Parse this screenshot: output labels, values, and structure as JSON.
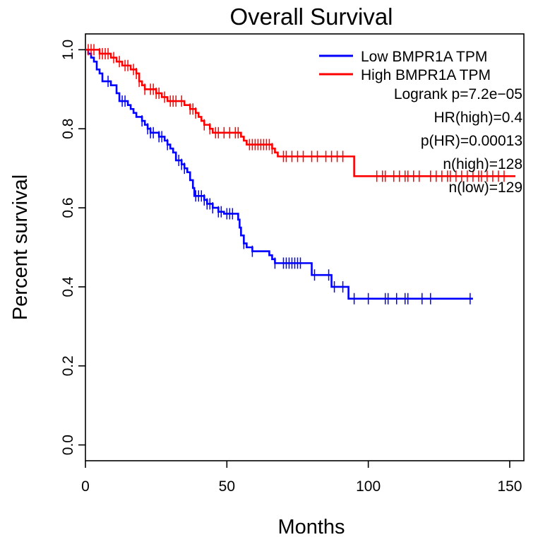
{
  "chart_data": {
    "type": "line",
    "title": "Overall Survival",
    "xlabel": "Months",
    "ylabel": "Percent survival",
    "xlim": [
      0,
      155
    ],
    "ylim": [
      -0.04,
      1.04
    ],
    "x_ticks": [
      0,
      50,
      100,
      150
    ],
    "y_ticks": [
      0.0,
      0.2,
      0.4,
      0.6,
      0.8,
      1.0
    ],
    "x_tick_labels": [
      "0",
      "50",
      "100",
      "150"
    ],
    "y_tick_labels": [
      "0.0",
      "0.2",
      "0.4",
      "0.6",
      "0.8",
      "1.0"
    ],
    "legend_position": "top-right",
    "series": [
      {
        "name": "Low BMPR1A TPM",
        "color": "#0000ff",
        "steps": [
          [
            0,
            1.0
          ],
          [
            1,
            0.99
          ],
          [
            2,
            0.98
          ],
          [
            3,
            0.97
          ],
          [
            4,
            0.95
          ],
          [
            5,
            0.94
          ],
          [
            6,
            0.92
          ],
          [
            9,
            0.91
          ],
          [
            11,
            0.89
          ],
          [
            12,
            0.87
          ],
          [
            15,
            0.86
          ],
          [
            16,
            0.85
          ],
          [
            17,
            0.84
          ],
          [
            18,
            0.83
          ],
          [
            20,
            0.82
          ],
          [
            21,
            0.81
          ],
          [
            22,
            0.8
          ],
          [
            23,
            0.79
          ],
          [
            26,
            0.78
          ],
          [
            28,
            0.77
          ],
          [
            29,
            0.76
          ],
          [
            30,
            0.75
          ],
          [
            31,
            0.74
          ],
          [
            32,
            0.72
          ],
          [
            34,
            0.71
          ],
          [
            35,
            0.7
          ],
          [
            36,
            0.69
          ],
          [
            37,
            0.67
          ],
          [
            38,
            0.65
          ],
          [
            38.5,
            0.63
          ],
          [
            42,
            0.62
          ],
          [
            43,
            0.61
          ],
          [
            45,
            0.6
          ],
          [
            47,
            0.59
          ],
          [
            49,
            0.585
          ],
          [
            54,
            0.57
          ],
          [
            54.5,
            0.55
          ],
          [
            55,
            0.53
          ],
          [
            56,
            0.51
          ],
          [
            57,
            0.5
          ],
          [
            59,
            0.49
          ],
          [
            65,
            0.48
          ],
          [
            66,
            0.47
          ],
          [
            67,
            0.46
          ],
          [
            80,
            0.43
          ],
          [
            87,
            0.4
          ],
          [
            93,
            0.37
          ],
          [
            137,
            0.37
          ]
        ],
        "censor_times": [
          8,
          13,
          14,
          20,
          22,
          23,
          24,
          26,
          27,
          29,
          33,
          34,
          35,
          39,
          40,
          41,
          42,
          43,
          44,
          45,
          47,
          48,
          50,
          51,
          52,
          56,
          59,
          67,
          70,
          71,
          72,
          73,
          74,
          75,
          76,
          81,
          86,
          88,
          91,
          95,
          100,
          106,
          107,
          110,
          113,
          114,
          119,
          122,
          136
        ]
      },
      {
        "name": "High BMPR1A TPM",
        "color": "#ff0000",
        "steps": [
          [
            0,
            1.0
          ],
          [
            5,
            0.99
          ],
          [
            9,
            0.98
          ],
          [
            11,
            0.97
          ],
          [
            13,
            0.96
          ],
          [
            16,
            0.95
          ],
          [
            18,
            0.94
          ],
          [
            19,
            0.92
          ],
          [
            20,
            0.91
          ],
          [
            21,
            0.9
          ],
          [
            25,
            0.89
          ],
          [
            27,
            0.88
          ],
          [
            29,
            0.87
          ],
          [
            35,
            0.86
          ],
          [
            37,
            0.85
          ],
          [
            39,
            0.84
          ],
          [
            40,
            0.83
          ],
          [
            41,
            0.82
          ],
          [
            42,
            0.81
          ],
          [
            44,
            0.8
          ],
          [
            45,
            0.79
          ],
          [
            55,
            0.78
          ],
          [
            56,
            0.77
          ],
          [
            57,
            0.76
          ],
          [
            66,
            0.75
          ],
          [
            67,
            0.74
          ],
          [
            68,
            0.73
          ],
          [
            95,
            0.68
          ],
          [
            152,
            0.68
          ]
        ],
        "censor_times": [
          1,
          2,
          3,
          5,
          6,
          7,
          8,
          10,
          12,
          14,
          15,
          17,
          18,
          19,
          21,
          23,
          24,
          25,
          26,
          28,
          30,
          31,
          32,
          34,
          37,
          38,
          39,
          42,
          44,
          46,
          47,
          49,
          51,
          53,
          54,
          58,
          59,
          60,
          61,
          62,
          63,
          64,
          65,
          66,
          70,
          71,
          73,
          75,
          77,
          80,
          82,
          85,
          87,
          89,
          91,
          103,
          105,
          106,
          109,
          111,
          113,
          114,
          116,
          118,
          122,
          124,
          126,
          128,
          129,
          131,
          133,
          135,
          137,
          139,
          140,
          142,
          144,
          146,
          148
        ]
      }
    ],
    "annotations": [
      "Logrank p=7.2e−05",
      "HR(high)=0.4",
      "p(HR)=0.00013",
      "n(high)=128",
      "n(low)=129"
    ]
  }
}
